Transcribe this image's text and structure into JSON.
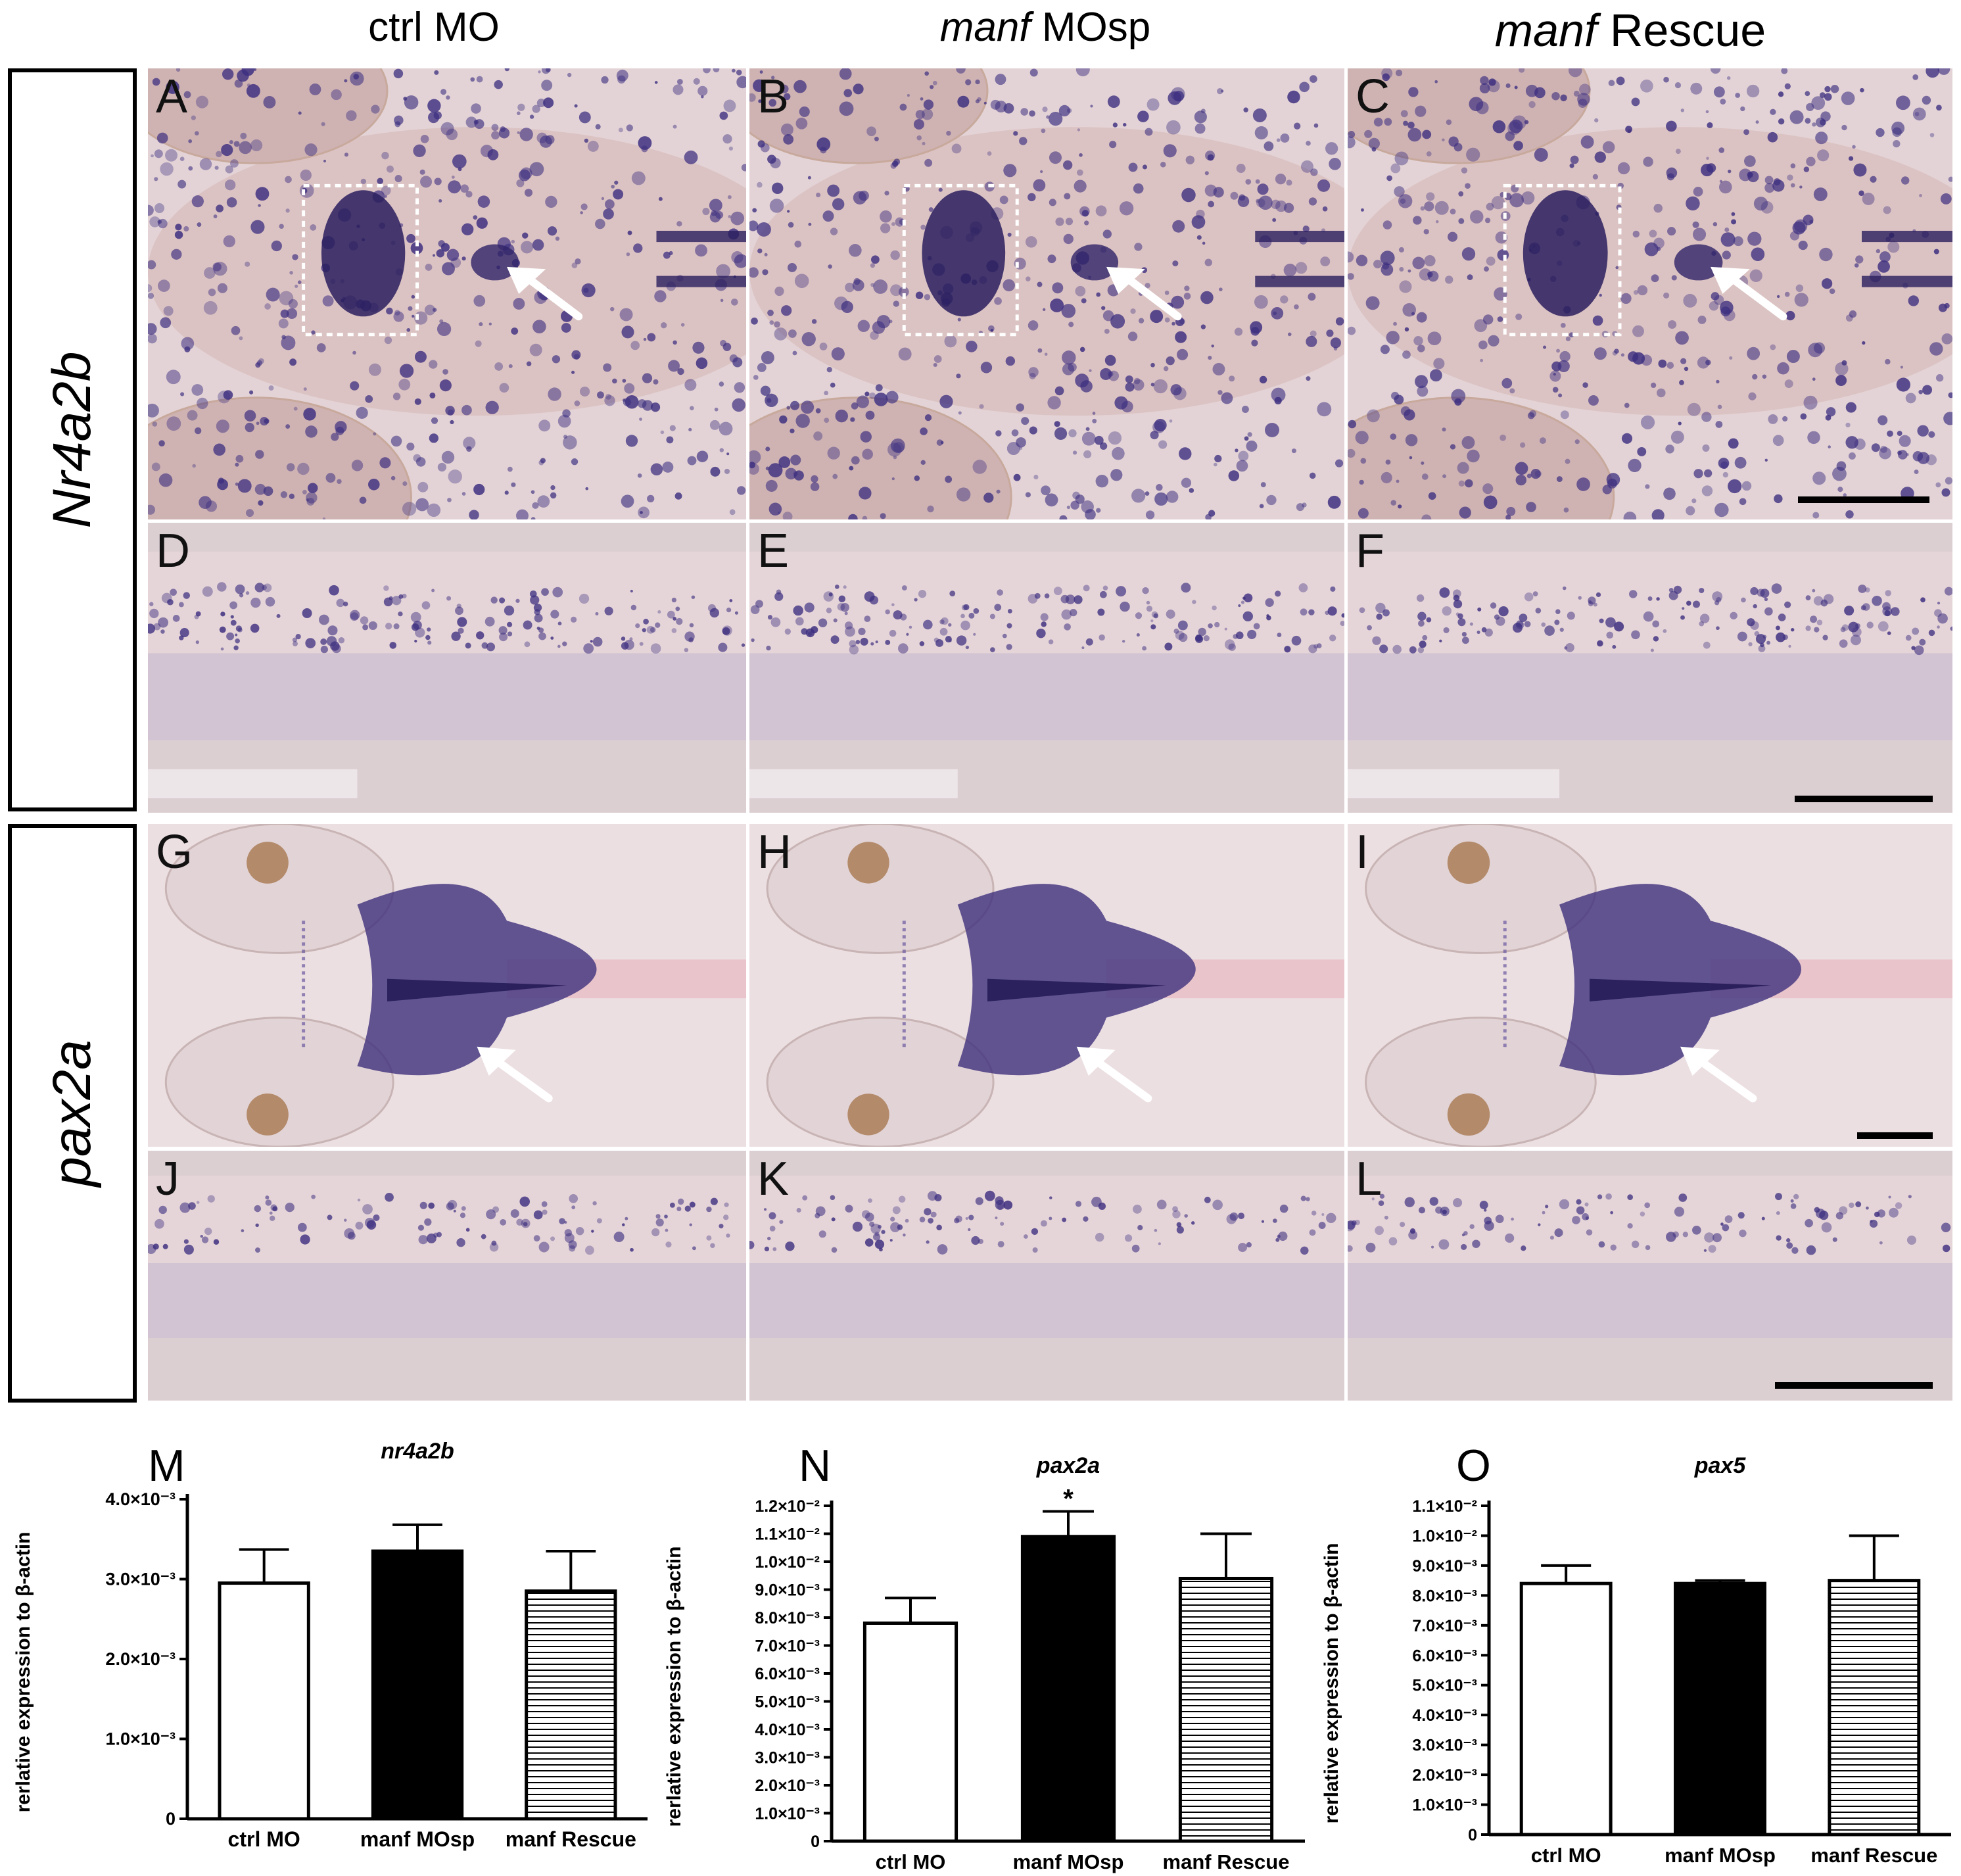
{
  "columns": [
    {
      "italic": "",
      "plain": "ctrl MO"
    },
    {
      "italic": "manf",
      "plain": " MOsp"
    },
    {
      "italic": "manf",
      "plain": " Rescue"
    }
  ],
  "genes": [
    "Nr4a2b",
    "pax2a"
  ],
  "panels": [
    "A",
    "B",
    "C",
    "D",
    "E",
    "F",
    "G",
    "H",
    "I",
    "J",
    "K",
    "L"
  ],
  "charts": {
    "colors": {
      "ctrl": "#ffffff",
      "mosp": "#000000",
      "rescue_stripe": "#000000",
      "background_image": "#e9dcdd",
      "stain": "#3b2f7d"
    },
    "categories": [
      "ctrl MO",
      "manf MOsp",
      "manf Rescue"
    ],
    "ylabel": "rerlative expression to β-actin",
    "chart_data": [
      {
        "type": "bar",
        "panel": "M",
        "title": "nr4a2b",
        "categories": [
          "ctrl MO",
          "manf MOsp",
          "manf Rescue"
        ],
        "values": [
          0.00295,
          0.00335,
          0.00285
        ],
        "errors": [
          0.00042,
          0.00033,
          0.0005
        ],
        "ylabel": "rerlative expression to β-actin",
        "ylim": [
          0,
          0.004
        ],
        "yticks": [
          0,
          0.001,
          0.002,
          0.003,
          0.004
        ],
        "yticklabels": [
          "0",
          "1.0×10⁻³",
          "2.0×10⁻³",
          "3.0×10⁻³",
          "4.0×10⁻³"
        ],
        "significance": [
          "",
          "",
          ""
        ]
      },
      {
        "type": "bar",
        "panel": "N",
        "title": "pax2a",
        "categories": [
          "ctrl MO",
          "manf MOsp",
          "manf Rescue"
        ],
        "values": [
          0.0078,
          0.0109,
          0.0094
        ],
        "errors": [
          0.0009,
          0.0009,
          0.0016
        ],
        "ylabel": "rerlative expression to β-actin",
        "ylim": [
          0,
          0.012
        ],
        "yticks": [
          0,
          0.001,
          0.002,
          0.003,
          0.004,
          0.005,
          0.006,
          0.007,
          0.008,
          0.009,
          0.01,
          0.011,
          0.012
        ],
        "yticklabels": [
          "0",
          "1.0×10⁻³",
          "2.0×10⁻³",
          "3.0×10⁻³",
          "4.0×10⁻³",
          "5.0×10⁻³",
          "6.0×10⁻³",
          "7.0×10⁻³",
          "8.0×10⁻³",
          "9.0×10⁻³",
          "1.0×10⁻²",
          "1.1×10⁻²",
          "1.2×10⁻²"
        ],
        "significance": [
          "",
          "*",
          ""
        ]
      },
      {
        "type": "bar",
        "panel": "O",
        "title": "pax5",
        "categories": [
          "ctrl MO",
          "manf MOsp",
          "manf Rescue"
        ],
        "values": [
          0.0084,
          0.0084,
          0.0085
        ],
        "errors": [
          0.0006,
          0.0001,
          0.0015
        ],
        "ylabel": "rerlative expression to β-actin",
        "ylim": [
          0,
          0.011
        ],
        "yticks": [
          0,
          0.001,
          0.002,
          0.003,
          0.004,
          0.005,
          0.006,
          0.007,
          0.008,
          0.009,
          0.01,
          0.011
        ],
        "yticklabels": [
          "0",
          "1.0×10⁻³",
          "2.0×10⁻³",
          "3.0×10⁻³",
          "4.0×10⁻³",
          "5.0×10⁻³",
          "6.0×10⁻³",
          "7.0×10⁻³",
          "8.0×10⁻³",
          "9.0×10⁻³",
          "1.0×10⁻²",
          "1.1×10⁻²"
        ],
        "significance": [
          "",
          "",
          ""
        ]
      }
    ]
  }
}
